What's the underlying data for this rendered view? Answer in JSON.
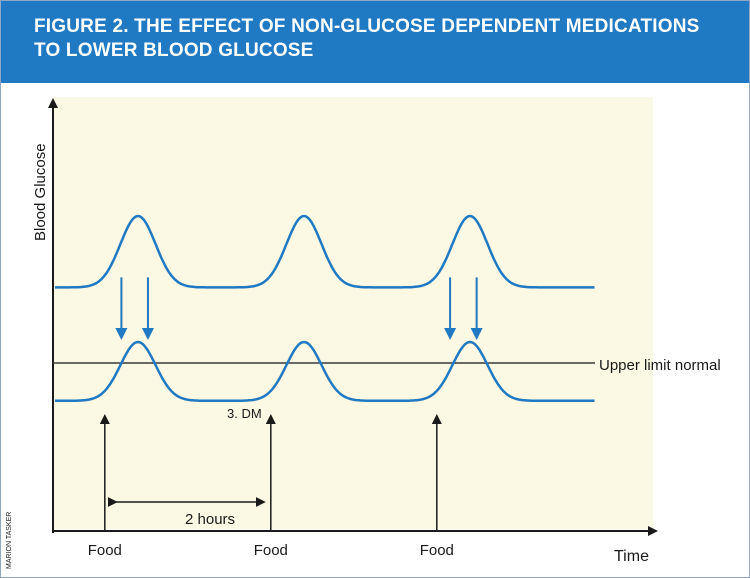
{
  "header": {
    "title_line1": "FIGURE 2. THE EFFECT OF NON-GLUCOSE DEPENDENT MEDICATIONS",
    "title_line2": "TO LOWER BLOOD GLUCOSE"
  },
  "credit": "MARION TASKER",
  "colors": {
    "header_bg": "#1f79c3",
    "plot_bg": "#fbf8e3",
    "curve": "#1f79c3",
    "axis": "#1a1a1a"
  },
  "chart_data": {
    "type": "line",
    "ylabel": "Blood Glucose",
    "xlabel": "Time",
    "grid": false,
    "series": [
      {
        "baseline": 0.58,
        "peak": 0.75,
        "peak_hours": [
          2.5,
          7.5,
          12.5
        ]
      },
      {
        "baseline": 0.31,
        "peak": 0.45,
        "peak_hours": [
          2.5,
          7.5,
          12.5
        ]
      }
    ],
    "reference_line": {
      "label": "Upper limit normal",
      "value": 0.4
    },
    "curve_label": "3. DM",
    "food_events": [
      {
        "label": "Food",
        "hours": 1.5
      },
      {
        "label": "Food",
        "hours": 6.5
      },
      {
        "label": "Food",
        "hours": 11.5
      }
    ],
    "interval": {
      "label": "2 hours",
      "from": 1.5,
      "to": 6.5
    },
    "medication_arrows": [
      {
        "hours": 2.0
      },
      {
        "hours": 2.8
      },
      {
        "hours": 11.9
      },
      {
        "hours": 12.7
      }
    ]
  }
}
